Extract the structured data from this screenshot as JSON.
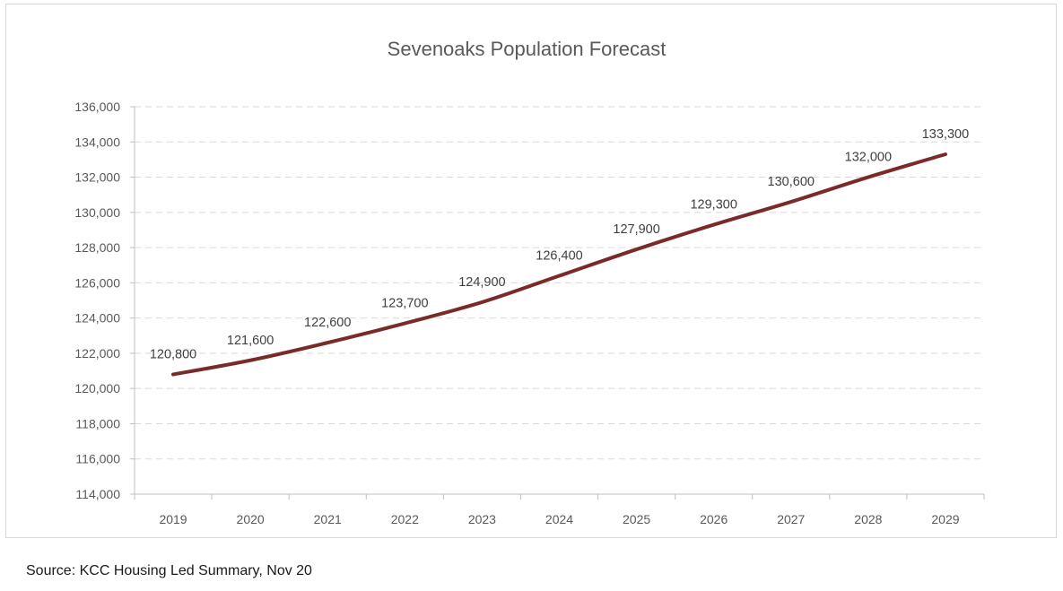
{
  "chart_data": {
    "type": "line",
    "title": "Sevenoaks Population Forecast",
    "xlabel": "",
    "ylabel": "",
    "categories": [
      "2019",
      "2020",
      "2021",
      "2022",
      "2023",
      "2024",
      "2025",
      "2026",
      "2027",
      "2028",
      "2029"
    ],
    "series": [
      {
        "values": [
          120800,
          121600,
          122600,
          123700,
          124900,
          126400,
          127900,
          129300,
          130600,
          132000,
          133300
        ],
        "data_labels": [
          "120,800",
          "121,600",
          "122,600",
          "123,700",
          "124,900",
          "126,400",
          "127,900",
          "129,300",
          "130,600",
          "132,000",
          "133,300"
        ],
        "color": "#7b2a2a"
      }
    ],
    "ylim": [
      114000,
      136000
    ],
    "y_ticks": [
      114000,
      116000,
      118000,
      120000,
      122000,
      124000,
      126000,
      128000,
      130000,
      132000,
      134000,
      136000
    ],
    "y_tick_labels": [
      "114,000",
      "116,000",
      "118,000",
      "120,000",
      "122,000",
      "124,000",
      "126,000",
      "128,000",
      "130,000",
      "132,000",
      "134,000",
      "136,000"
    ],
    "grid": true,
    "grid_style": "dashed",
    "legend": false
  },
  "source": "Source: KCC Housing Led Summary, Nov 20",
  "colors": {
    "line": "#7b2a2a",
    "grid": "#d9d9d9",
    "axis": "#bfbfbf",
    "text": "#595959"
  }
}
